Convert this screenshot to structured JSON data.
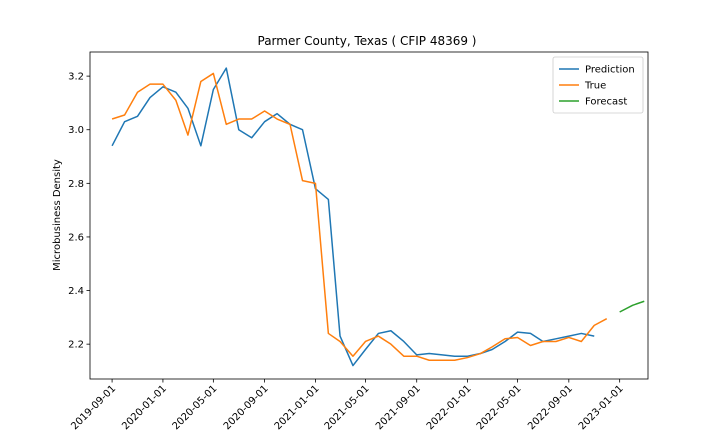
{
  "chart_data": {
    "type": "line",
    "title": "Parmer County, Texas ( CFIP 48369 )",
    "xlabel": "",
    "ylabel": "Microbusiness Density",
    "x_range": [
      "2019-07-10",
      "2023-03-10"
    ],
    "ylim": [
      2.07,
      3.29
    ],
    "grid": false,
    "legend_position": "upper-right",
    "x_ticks": [
      "2019-09-01",
      "2020-01-01",
      "2020-05-01",
      "2020-09-01",
      "2021-01-01",
      "2021-05-01",
      "2021-09-01",
      "2022-01-01",
      "2022-05-01",
      "2022-09-01",
      "2023-01-01"
    ],
    "y_ticks": [
      2.2,
      2.4,
      2.6,
      2.8,
      3.0,
      3.2
    ],
    "y_tick_labels": [
      "2.2",
      "2.4",
      "2.6",
      "2.8",
      "3.0",
      "3.2"
    ],
    "series": [
      {
        "name": "Prediction",
        "color": "#1f77b4",
        "x": [
          "2019-09-01",
          "2019-10-01",
          "2019-11-01",
          "2019-12-01",
          "2020-01-01",
          "2020-02-01",
          "2020-03-01",
          "2020-04-01",
          "2020-05-01",
          "2020-06-01",
          "2020-07-01",
          "2020-08-01",
          "2020-09-01",
          "2020-10-01",
          "2020-11-01",
          "2020-12-01",
          "2021-01-01",
          "2021-02-01",
          "2021-03-01",
          "2021-04-01",
          "2021-05-01",
          "2021-06-01",
          "2021-07-01",
          "2021-08-01",
          "2021-09-01",
          "2021-10-01",
          "2021-11-01",
          "2021-12-01",
          "2022-01-01",
          "2022-02-01",
          "2022-03-01",
          "2022-04-01",
          "2022-05-01",
          "2022-06-01",
          "2022-07-01",
          "2022-08-01",
          "2022-09-01",
          "2022-10-01",
          "2022-11-01"
        ],
        "values": [
          2.94,
          3.03,
          3.05,
          3.12,
          3.16,
          3.14,
          3.08,
          2.94,
          3.15,
          3.23,
          3.0,
          2.97,
          3.03,
          3.06,
          3.02,
          3.0,
          2.78,
          2.74,
          2.23,
          2.12,
          2.18,
          2.24,
          2.25,
          2.21,
          2.16,
          2.165,
          2.16,
          2.155,
          2.155,
          2.165,
          2.18,
          2.21,
          2.245,
          2.24,
          2.21,
          2.22,
          2.23,
          2.24,
          2.23
        ]
      },
      {
        "name": "True",
        "color": "#ff7f0e",
        "x": [
          "2019-09-01",
          "2019-10-01",
          "2019-11-01",
          "2019-12-01",
          "2020-01-01",
          "2020-02-01",
          "2020-03-01",
          "2020-04-01",
          "2020-05-01",
          "2020-06-01",
          "2020-07-01",
          "2020-08-01",
          "2020-09-01",
          "2020-10-01",
          "2020-11-01",
          "2020-12-01",
          "2021-01-01",
          "2021-02-01",
          "2021-03-01",
          "2021-04-01",
          "2021-05-01",
          "2021-06-01",
          "2021-07-01",
          "2021-08-01",
          "2021-09-01",
          "2021-10-01",
          "2021-11-01",
          "2021-12-01",
          "2022-01-01",
          "2022-02-01",
          "2022-03-01",
          "2022-04-01",
          "2022-05-01",
          "2022-06-01",
          "2022-07-01",
          "2022-08-01",
          "2022-09-01",
          "2022-10-01",
          "2022-11-01",
          "2022-12-01"
        ],
        "values": [
          3.04,
          3.055,
          3.14,
          3.17,
          3.17,
          3.11,
          2.98,
          3.18,
          3.21,
          3.02,
          3.04,
          3.04,
          3.07,
          3.04,
          3.02,
          2.81,
          2.8,
          2.24,
          2.21,
          2.155,
          2.21,
          2.23,
          2.2,
          2.155,
          2.155,
          2.14,
          2.14,
          2.14,
          2.15,
          2.165,
          2.19,
          2.22,
          2.225,
          2.195,
          2.21,
          2.21,
          2.225,
          2.21,
          2.27,
          2.295
        ]
      },
      {
        "name": "Forecast",
        "color": "#2ca02c",
        "x": [
          "2023-01-01",
          "2023-02-01",
          "2023-03-01"
        ],
        "values": [
          2.32,
          2.345,
          2.36
        ]
      }
    ]
  }
}
